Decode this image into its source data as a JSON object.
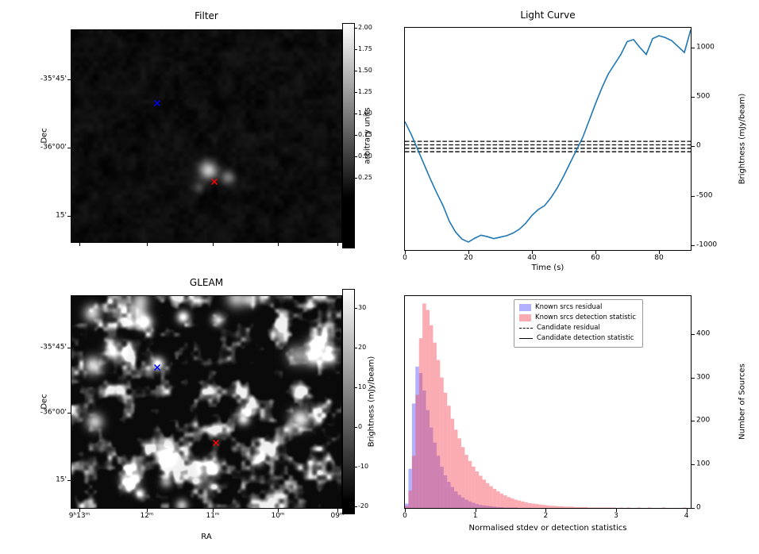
{
  "chart_data": [
    {
      "id": "filter",
      "type": "heatmap",
      "title": "Filter",
      "ylabel": "Dec",
      "ytick_labels": [
        "-35°45'",
        "-36°00'",
        "15'"
      ],
      "colorbar": {
        "label": "arbitrary units",
        "tick_labels": [
          "2.00",
          "1.75",
          "1.50",
          "1.25",
          "1.00",
          "0.75",
          "0.50",
          "0.25"
        ]
      },
      "markers": [
        {
          "name": "blue-x",
          "color": "#0000ff",
          "fx": 0.318,
          "fy": 0.326
        },
        {
          "name": "red-x",
          "color": "#ff0000",
          "fx": 0.529,
          "fy": 0.697
        }
      ]
    },
    {
      "id": "light_curve",
      "type": "line",
      "title": "Light Curve",
      "xlabel": "Time (s)",
      "ylabel": "Brightness (mJy/beam)",
      "xlim": [
        0,
        90
      ],
      "ylim": [
        -1050,
        1200
      ],
      "xticks": [
        0,
        20,
        40,
        60,
        80
      ],
      "yticks": [
        1000,
        500,
        0,
        -500,
        -1000
      ],
      "line_color": "#1f77b4",
      "x": [
        0,
        2,
        4,
        6,
        8,
        10,
        12,
        14,
        16,
        18,
        20,
        22,
        24,
        26,
        28,
        30,
        32,
        34,
        36,
        38,
        40,
        42,
        44,
        46,
        48,
        50,
        52,
        54,
        56,
        58,
        60,
        62,
        64,
        66,
        68,
        70,
        72,
        74,
        76,
        78,
        80,
        82,
        84,
        86,
        88,
        90
      ],
      "y": [
        250,
        120,
        -30,
        -180,
        -330,
        -470,
        -600,
        -760,
        -870,
        -940,
        -970,
        -930,
        -900,
        -915,
        -935,
        -920,
        -905,
        -880,
        -840,
        -780,
        -700,
        -640,
        -600,
        -520,
        -420,
        -300,
        -170,
        -40,
        90,
        260,
        430,
        590,
        730,
        830,
        930,
        1060,
        1080,
        1000,
        930,
        1090,
        1120,
        1100,
        1070,
        1010,
        950,
        1180
      ],
      "reference_lines": {
        "style": "dashed",
        "color": "#000000",
        "levels": [
          50,
          15,
          -20,
          -55
        ]
      }
    },
    {
      "id": "gleam",
      "type": "heatmap",
      "title": "GLEAM",
      "xlabel": "RA",
      "ylabel": "Dec",
      "xtick_labels": [
        "9ʰ13ᵐ",
        "12ᵐ",
        "11ᵐ",
        "10ᵐ",
        "09ᵐ"
      ],
      "ytick_labels": [
        "-35°45'",
        "-36°00'",
        "15'"
      ],
      "colorbar": {
        "label": "Brightness (mJy/beam)",
        "tick_labels": [
          "30",
          "20",
          "10",
          "0",
          "-10",
          "-20"
        ]
      },
      "markers": [
        {
          "name": "blue-x",
          "color": "#0000ff",
          "fx": 0.318,
          "fy": 0.318
        },
        {
          "name": "red-x",
          "color": "#ff0000",
          "fx": 0.535,
          "fy": 0.674
        }
      ]
    },
    {
      "id": "histogram",
      "type": "bar",
      "xlabel": "Normalised stdev or detection statistics",
      "ylabel": "Number of Sources",
      "xlim": [
        0,
        4.06
      ],
      "ylim": [
        0,
        487
      ],
      "xticks": [
        0,
        1,
        2,
        3,
        4
      ],
      "yticks": [
        0,
        100,
        200,
        300,
        400
      ],
      "bin_width": 0.05,
      "series": [
        {
          "name": "Known srcs residual",
          "color": "rgba(60,60,255,0.40)",
          "values": [
            10,
            90,
            240,
            325,
            310,
            270,
            225,
            185,
            150,
            120,
            95,
            75,
            60,
            48,
            38,
            30,
            24,
            19,
            15,
            12,
            9,
            7,
            6,
            5,
            4,
            3,
            2,
            2,
            1,
            1,
            1,
            1,
            0,
            0,
            0,
            0,
            0,
            0,
            0,
            0,
            0,
            0,
            0,
            0,
            0,
            0,
            0,
            0,
            0,
            0,
            0,
            0,
            0,
            0,
            0,
            0,
            0,
            0,
            0,
            0,
            0,
            0,
            0,
            0,
            0,
            0,
            0,
            0,
            0,
            0,
            0,
            0,
            0,
            0,
            0,
            0,
            0,
            0,
            0,
            0
          ]
        },
        {
          "name": "Known srcs detection statistic",
          "color": "rgba(245,70,85,0.45)",
          "values": [
            5,
            40,
            120,
            260,
            390,
            470,
            455,
            420,
            380,
            340,
            300,
            265,
            235,
            205,
            180,
            160,
            140,
            122,
            108,
            95,
            84,
            74,
            65,
            57,
            50,
            44,
            38,
            33,
            29,
            25,
            22,
            19,
            17,
            15,
            13,
            11,
            10,
            9,
            8,
            7,
            6,
            5,
            5,
            4,
            4,
            3,
            3,
            3,
            2,
            2,
            2,
            2,
            1,
            1,
            1,
            1,
            1,
            1,
            1,
            1,
            0,
            1,
            0,
            1,
            0,
            0,
            1,
            0,
            0,
            1,
            0,
            0,
            0,
            1,
            0,
            0,
            0,
            0,
            0,
            1
          ]
        }
      ],
      "legend": [
        {
          "swatch": "patch",
          "color": "rgba(60,60,255,0.40)",
          "label": "Known srcs residual"
        },
        {
          "swatch": "patch",
          "color": "rgba(245,70,85,0.45)",
          "label": "Known srcs detection statistic"
        },
        {
          "swatch": "dashed-line",
          "color": "#000000",
          "label": "Candidate residual"
        },
        {
          "swatch": "solid-line",
          "color": "#000000",
          "label": "Candidate detection statistic"
        }
      ]
    }
  ]
}
